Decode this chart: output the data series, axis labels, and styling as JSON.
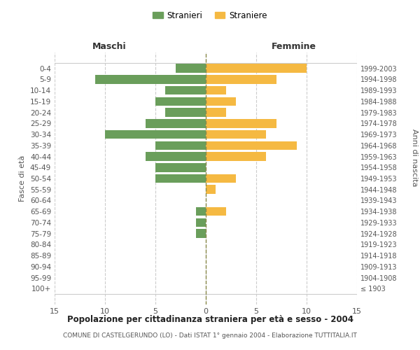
{
  "age_groups": [
    "100+",
    "95-99",
    "90-94",
    "85-89",
    "80-84",
    "75-79",
    "70-74",
    "65-69",
    "60-64",
    "55-59",
    "50-54",
    "45-49",
    "40-44",
    "35-39",
    "30-34",
    "25-29",
    "20-24",
    "15-19",
    "10-14",
    "5-9",
    "0-4"
  ],
  "birth_years": [
    "≤ 1903",
    "1904-1908",
    "1909-1913",
    "1914-1918",
    "1919-1923",
    "1924-1928",
    "1929-1933",
    "1934-1938",
    "1939-1943",
    "1944-1948",
    "1949-1953",
    "1954-1958",
    "1959-1963",
    "1964-1968",
    "1969-1973",
    "1974-1978",
    "1979-1983",
    "1984-1988",
    "1989-1993",
    "1994-1998",
    "1999-2003"
  ],
  "males": [
    0,
    0,
    0,
    0,
    0,
    1,
    1,
    1,
    0,
    0,
    5,
    5,
    6,
    5,
    10,
    6,
    4,
    5,
    4,
    11,
    3
  ],
  "females": [
    0,
    0,
    0,
    0,
    0,
    0,
    0,
    2,
    0,
    1,
    3,
    0,
    6,
    9,
    6,
    7,
    2,
    3,
    2,
    7,
    10
  ],
  "male_color": "#6a9e5b",
  "female_color": "#f5b942",
  "bg_color": "#ffffff",
  "grid_color": "#cccccc",
  "title": "Popolazione per cittadinanza straniera per età e sesso - 2004",
  "subtitle": "COMUNE DI CASTELGERUNDO (LO) - Dati ISTAT 1° gennaio 2004 - Elaborazione TUTTITALIA.IT",
  "xlabel_left": "Maschi",
  "xlabel_right": "Femmine",
  "ylabel_left": "Fasce di età",
  "ylabel_right": "Anni di nascita",
  "legend_male": "Stranieri",
  "legend_female": "Straniere",
  "xlim": 15,
  "tick_color": "#888888",
  "bar_height": 0.8
}
